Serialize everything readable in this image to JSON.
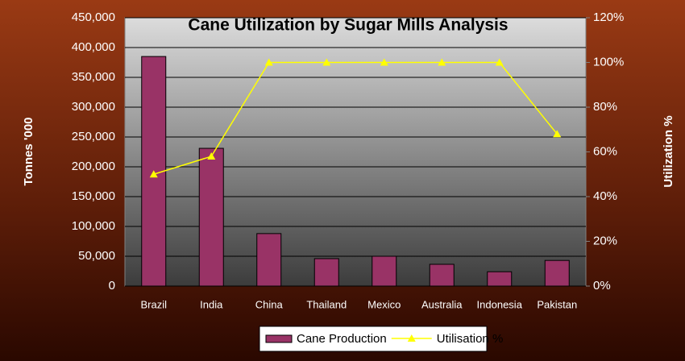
{
  "chart_data": {
    "type": "bar",
    "title": "Cane Utilization by Sugar Mills Analysis",
    "y_label": "Tonnes '000",
    "y2_label": "Utilization %",
    "categories": [
      "Brazil",
      "India",
      "China",
      "Thailand",
      "Mexico",
      "Australia",
      "Indonesia",
      "Pakistan"
    ],
    "series": [
      {
        "name": "Cane Production",
        "type": "bar",
        "color": "#993366",
        "values": [
          385000,
          231000,
          88000,
          46000,
          50000,
          36500,
          24000,
          43000
        ]
      },
      {
        "name": "Utilisation %",
        "type": "line",
        "axis": "y2",
        "color": "#ffff00",
        "values": [
          50,
          58,
          100,
          100,
          100,
          100,
          100,
          68
        ]
      }
    ],
    "ylim": [
      0,
      450000
    ],
    "yticks": [
      0,
      {
        "value": 50000,
        "label": "50,000"
      },
      {
        "value": 100000,
        "label": "100,000"
      },
      {
        "value": 150000,
        "label": "150,000"
      },
      {
        "value": 200000,
        "label": "200,000"
      },
      {
        "value": 250000,
        "label": "250,000"
      },
      {
        "value": 300000,
        "label": "300,000"
      },
      {
        "value": 350000,
        "label": "350,000"
      },
      {
        "value": 400000,
        "label": "400,000"
      },
      {
        "value": 450000,
        "label": "450,000"
      }
    ],
    "y2lim": [
      0,
      120
    ],
    "y2ticks": [
      {
        "value": 0,
        "label": "0%"
      },
      {
        "value": 20,
        "label": "20%"
      },
      {
        "value": 40,
        "label": "40%"
      },
      {
        "value": 60,
        "label": "60%"
      },
      {
        "value": 80,
        "label": "80%"
      },
      {
        "value": 100,
        "label": "100%"
      },
      {
        "value": 120,
        "label": "120%"
      }
    ],
    "grid": true,
    "legend": "bottom"
  }
}
